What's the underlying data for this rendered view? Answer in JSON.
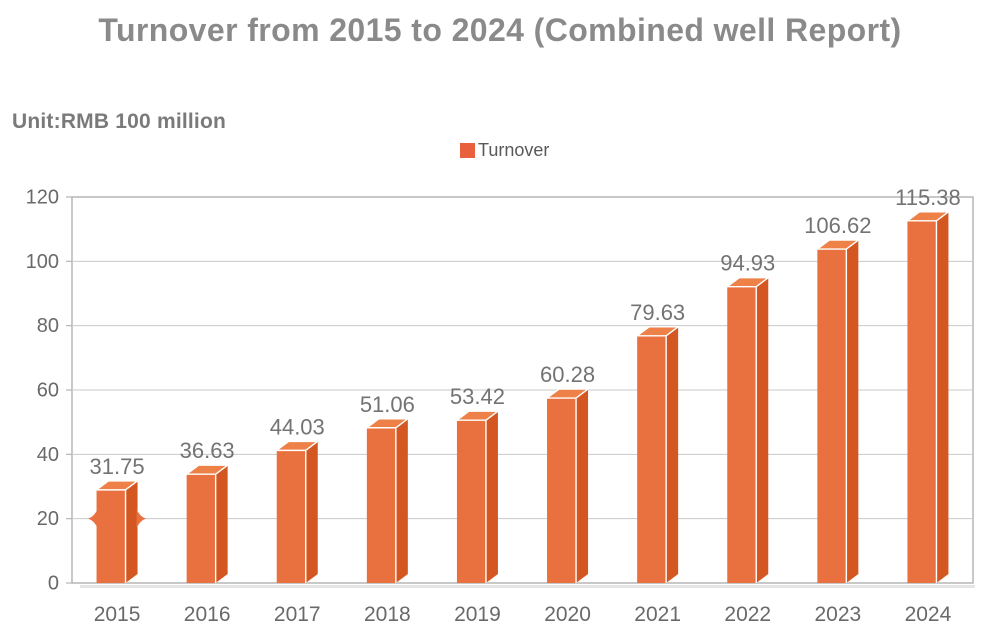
{
  "title": "Turnover from 2015 to 2024 (Combined well Report)",
  "unit_label": "Unit:RMB 100 million",
  "legend": {
    "label": "Turnover",
    "swatch_color": "#e8613c"
  },
  "chart_data": {
    "type": "bar",
    "title": "Turnover from 2015 to 2024 (Combined well Report)",
    "unit": "RMB 100 million",
    "categories": [
      "2015",
      "2016",
      "2017",
      "2018",
      "2019",
      "2020",
      "2021",
      "2022",
      "2023",
      "2024"
    ],
    "series": [
      {
        "name": "Turnover",
        "values": [
          31.75,
          36.63,
          44.03,
          51.06,
          53.42,
          60.28,
          79.63,
          94.93,
          106.62,
          115.38
        ]
      }
    ],
    "value_labels": [
      "31.75",
      "36.63",
      "44.03",
      "51.06",
      "53.42",
      "60.28",
      "79.63",
      "94.93",
      "106.62",
      "115.38"
    ],
    "ylim": [
      0,
      120
    ],
    "yticks": [
      0,
      20,
      40,
      60,
      80,
      100,
      120
    ],
    "grid": true,
    "legend_position": "top-center",
    "bar_style": "3d",
    "first_bar_pinch_at_value": 20,
    "colors": {
      "bar_front": "#e8713f",
      "bar_top": "#ed8148",
      "bar_side": "#d45722",
      "grid": "#c9c9c9",
      "frame": "#ababab",
      "tick": "#b5b5b5",
      "value_label": "#737373",
      "axis_label": "#696969",
      "title": "#8a8a8a",
      "unit_label": "#7a7a7a",
      "legend_label": "#595959"
    }
  }
}
